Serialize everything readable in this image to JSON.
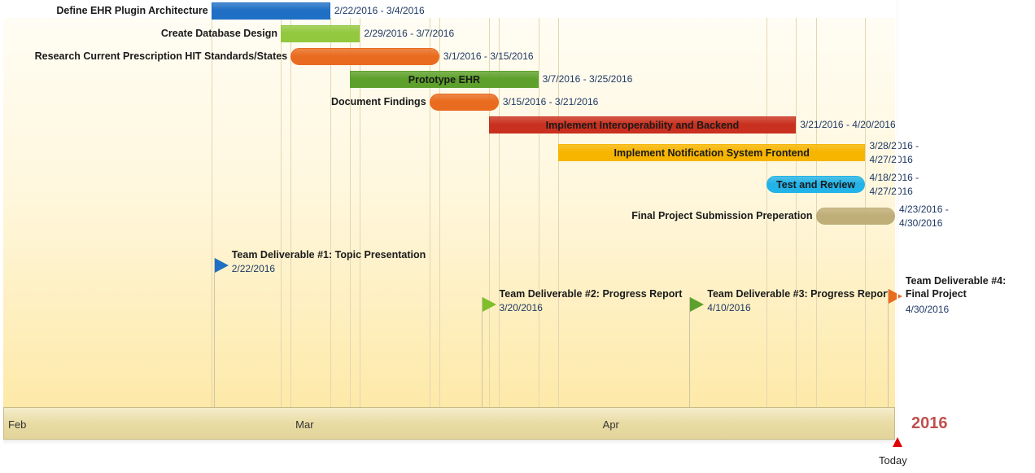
{
  "chart_data": {
    "type": "gantt",
    "year": "2016",
    "months": [
      {
        "label": "Feb",
        "date": "2016-02-01"
      },
      {
        "label": "Mar",
        "date": "2016-03-01"
      },
      {
        "label": "Apr",
        "date": "2016-04-01"
      }
    ],
    "x_range": [
      "2016-02-01",
      "2016-05-01"
    ],
    "today": {
      "label": "Today",
      "date": "2016-04-30"
    },
    "tasks": [
      {
        "name": "Define EHR Plugin Architecture",
        "start": "2016-02-22",
        "end": "2016-03-04",
        "range_label": "2/22/2016 - 3/4/2016",
        "color": "#1f6fc5",
        "shape": "rect",
        "label_pos": "left"
      },
      {
        "name": "Create Database Design",
        "start": "2016-02-29",
        "end": "2016-03-07",
        "range_label": "2/29/2016 - 3/7/2016",
        "color": "#92c83e",
        "shape": "rect",
        "label_pos": "left"
      },
      {
        "name": "Research Current Prescription HIT Standards/States",
        "start": "2016-03-01",
        "end": "2016-03-15",
        "range_label": "3/1/2016 - 3/15/2016",
        "color": "#e96b1f",
        "shape": "pill",
        "label_pos": "left"
      },
      {
        "name": "Prototype EHR",
        "start": "2016-03-07",
        "end": "2016-03-25",
        "range_label": "3/7/2016 - 3/25/2016",
        "color": "#5da12c",
        "shape": "rect",
        "label_pos": "inside"
      },
      {
        "name": "Document Findings",
        "start": "2016-03-15",
        "end": "2016-03-21",
        "range_label": "3/15/2016 - 3/21/2016",
        "color": "#e96b1f",
        "shape": "pill",
        "label_pos": "left"
      },
      {
        "name": "Implement Interoperability and Backend",
        "start": "2016-03-21",
        "end": "2016-04-20",
        "range_label": "3/21/2016 - 4/20/2016",
        "color": "#c9301f",
        "shape": "rect",
        "label_pos": "inside"
      },
      {
        "name": "Implement Notification System Frontend",
        "start": "2016-03-28",
        "end": "2016-04-27",
        "range_label": "3/28/2016 - 4/27/2016",
        "color": "#f7b500",
        "shape": "rect",
        "label_pos": "inside"
      },
      {
        "name": "Test and Review",
        "start": "2016-04-18",
        "end": "2016-04-27",
        "range_label": "4/18/2016 - 4/27/2016",
        "color": "#22b3e8",
        "shape": "pill",
        "label_pos": "inside"
      },
      {
        "name": "Final Project Submission Preperation",
        "start": "2016-04-23",
        "end": "2016-04-30",
        "range_label": "4/23/2016 - 4/30/2016",
        "color": "#bfae78",
        "shape": "pill",
        "label_pos": "left"
      }
    ],
    "milestones": [
      {
        "name": "Team Deliverable #1: Topic Presentation",
        "date": "2016-02-22",
        "date_label": "2/22/2016",
        "color": "#1f6fc5"
      },
      {
        "name": "Team Deliverable #2: Progress Report",
        "date": "2016-03-20",
        "date_label": "3/20/2016",
        "color": "#7fbf2a"
      },
      {
        "name": "Team Deliverable #3: Progress Report",
        "date": "2016-04-10",
        "date_label": "4/10/2016",
        "color": "#5da12c"
      },
      {
        "name": "Team Deliverable #4: Final Project",
        "date": "2016-04-30",
        "date_label": "4/30/2016",
        "color": "#e96b1f"
      }
    ]
  }
}
